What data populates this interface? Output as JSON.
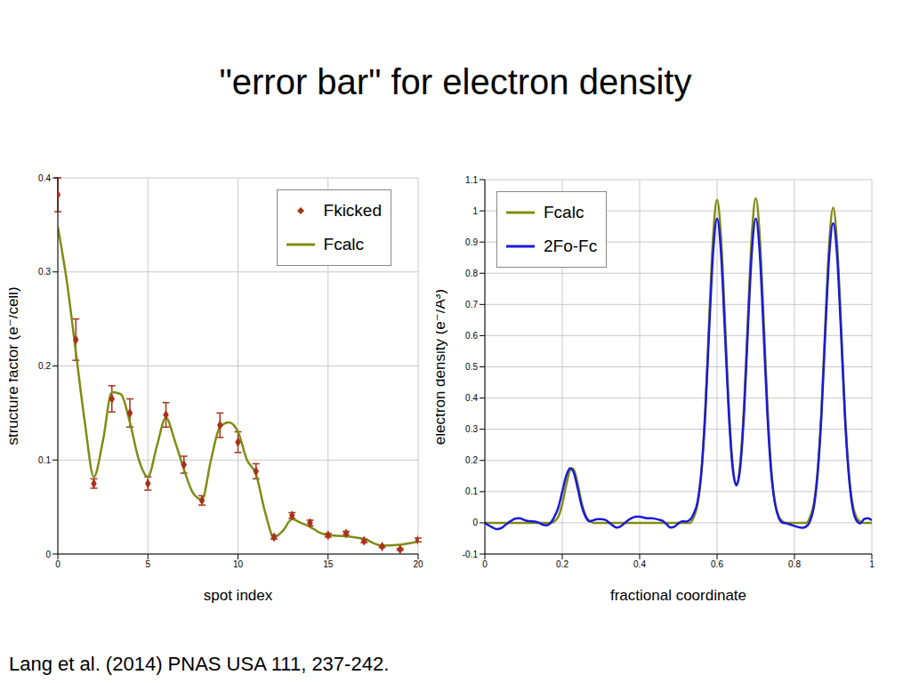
{
  "title": "\"error bar\" for electron density",
  "source": "Lang et al. (2014) PNAS USA 111, 237-242.",
  "chart_data": [
    {
      "type": "line",
      "x_label": "spot index",
      "y_label": "structure factor (e⁻/cell)",
      "xlim": [
        0,
        20
      ],
      "xticks": [
        0,
        5,
        10,
        15,
        20
      ],
      "ylim": [
        0,
        0.4
      ],
      "yticks": [
        0,
        0.1,
        0.2,
        0.3,
        0.4
      ],
      "grid": true,
      "legend": "upper right",
      "series": [
        {
          "name": "Fkicked",
          "type": "scatter",
          "marker": "diamond",
          "color": "#a8321a",
          "x": [
            0,
            1,
            2,
            3,
            4,
            5,
            6,
            7,
            8,
            9,
            10,
            11,
            12,
            13,
            14,
            15,
            16,
            17,
            18,
            19,
            20
          ],
          "values": [
            0.382,
            0.228,
            0.075,
            0.165,
            0.15,
            0.075,
            0.148,
            0.095,
            0.057,
            0.137,
            0.119,
            0.088,
            0.018,
            0.041,
            0.033,
            0.02,
            0.022,
            0.014,
            0.008,
            0.005,
            0.015
          ],
          "errors": [
            0.018,
            0.022,
            0.005,
            0.014,
            0.015,
            0.007,
            0.013,
            0.009,
            0.005,
            0.013,
            0.011,
            0.008,
            0.002,
            0.003,
            0.003,
            0.002,
            0.002,
            0.002,
            0.001,
            0.001,
            0.002
          ]
        },
        {
          "name": "Fcalc",
          "type": "line",
          "color": "#808c14",
          "x": [
            0,
            0.5,
            1,
            1.5,
            2,
            2.5,
            3,
            3.5,
            4,
            4.5,
            5,
            5.5,
            6,
            6.5,
            7,
            7.5,
            8,
            8.5,
            9,
            9.5,
            10,
            10.5,
            11,
            11.5,
            12,
            12.5,
            13,
            13.5,
            14,
            14.5,
            15,
            16,
            17,
            18,
            19,
            20
          ],
          "values": [
            0.348,
            0.29,
            0.215,
            0.14,
            0.082,
            0.12,
            0.172,
            0.17,
            0.14,
            0.1,
            0.082,
            0.115,
            0.145,
            0.12,
            0.09,
            0.065,
            0.058,
            0.1,
            0.135,
            0.14,
            0.13,
            0.1,
            0.085,
            0.045,
            0.018,
            0.025,
            0.037,
            0.033,
            0.029,
            0.023,
            0.02,
            0.019,
            0.016,
            0.009,
            0.01,
            0.013
          ]
        }
      ]
    },
    {
      "type": "line",
      "x_label": "fractional coordinate",
      "y_label": "electron density (e⁻/Å³)",
      "xlim": [
        0,
        1
      ],
      "xticks": [
        0,
        0.2,
        0.4,
        0.6,
        0.8,
        1
      ],
      "ylim": [
        -0.1,
        1.1
      ],
      "yticks": [
        -0.1,
        0,
        0.1,
        0.2,
        0.3,
        0.4,
        0.5,
        0.6,
        0.7,
        0.8,
        0.9,
        1,
        1.1
      ],
      "grid": true,
      "legend": "upper left",
      "series": [
        {
          "name": "Fcalc",
          "type": "line",
          "color": "#808c14",
          "x": [
            0,
            0.17,
            0.18,
            0.19,
            0.2,
            0.21,
            0.22,
            0.225,
            0.23,
            0.24,
            0.25,
            0.26,
            0.27,
            0.28,
            0.53,
            0.54,
            0.55,
            0.56,
            0.57,
            0.58,
            0.59,
            0.6,
            0.61,
            0.62,
            0.63,
            0.64,
            0.65,
            0.66,
            0.67,
            0.68,
            0.69,
            0.7,
            0.71,
            0.72,
            0.73,
            0.74,
            0.75,
            0.76,
            0.77,
            0.78,
            0.83,
            0.84,
            0.85,
            0.86,
            0.87,
            0.88,
            0.89,
            0.9,
            0.91,
            0.92,
            0.93,
            0.94,
            0.95,
            0.96,
            0.97,
            0.98,
            1
          ],
          "values": [
            0,
            0,
            0.005,
            0.02,
            0.06,
            0.12,
            0.168,
            0.175,
            0.17,
            0.125,
            0.065,
            0.025,
            0.007,
            0,
            0,
            0.019,
            0.062,
            0.172,
            0.377,
            0.662,
            0.921,
            1.035,
            0.921,
            0.663,
            0.381,
            0.191,
            0.124,
            0.192,
            0.383,
            0.666,
            0.926,
            1.04,
            0.926,
            0.666,
            0.379,
            0.173,
            0.062,
            0.019,
            0.004,
            0,
            0,
            0.018,
            0.061,
            0.168,
            0.368,
            0.646,
            0.899,
            1.01,
            0.899,
            0.646,
            0.368,
            0.168,
            0.061,
            0.018,
            0.004,
            0,
            0
          ]
        },
        {
          "name": "2Fo-Fc",
          "type": "line",
          "color": "#1a1ad8",
          "x": [
            0,
            0.01,
            0.02,
            0.03,
            0.04,
            0.05,
            0.06,
            0.07,
            0.08,
            0.09,
            0.1,
            0.11,
            0.12,
            0.13,
            0.14,
            0.15,
            0.16,
            0.17,
            0.18,
            0.19,
            0.2,
            0.21,
            0.22,
            0.23,
            0.24,
            0.25,
            0.26,
            0.27,
            0.28,
            0.29,
            0.3,
            0.31,
            0.32,
            0.33,
            0.34,
            0.35,
            0.36,
            0.37,
            0.38,
            0.39,
            0.4,
            0.41,
            0.42,
            0.43,
            0.44,
            0.45,
            0.46,
            0.47,
            0.48,
            0.49,
            0.5,
            0.51,
            0.52,
            0.53,
            0.54,
            0.55,
            0.56,
            0.57,
            0.58,
            0.59,
            0.6,
            0.61,
            0.62,
            0.63,
            0.64,
            0.65,
            0.66,
            0.67,
            0.68,
            0.69,
            0.7,
            0.71,
            0.72,
            0.73,
            0.74,
            0.75,
            0.76,
            0.77,
            0.78,
            0.79,
            0.8,
            0.81,
            0.82,
            0.83,
            0.84,
            0.85,
            0.86,
            0.87,
            0.88,
            0.89,
            0.9,
            0.91,
            0.92,
            0.93,
            0.94,
            0.95,
            0.96,
            0.97,
            0.98,
            0.99,
            1
          ],
          "values": [
            0,
            -0.008,
            -0.015,
            -0.02,
            -0.018,
            -0.01,
            0,
            0.008,
            0.014,
            0.015,
            0.01,
            0.006,
            0.005,
            0.004,
            0,
            -0.006,
            -0.008,
            0,
            0.02,
            0.05,
            0.1,
            0.15,
            0.175,
            0.16,
            0.11,
            0.055,
            0.02,
            0.005,
            0.008,
            0.012,
            0.012,
            0.01,
            0.002,
            -0.008,
            -0.015,
            -0.012,
            -0.002,
            0.008,
            0.016,
            0.02,
            0.02,
            0.017,
            0.015,
            0.015,
            0.013,
            0.01,
            0.006,
            -0.005,
            -0.015,
            -0.012,
            -0.002,
            0.005,
            0.004,
            0.01,
            0.03,
            0.07,
            0.17,
            0.36,
            0.63,
            0.87,
            0.975,
            0.87,
            0.62,
            0.36,
            0.18,
            0.12,
            0.18,
            0.36,
            0.63,
            0.87,
            0.975,
            0.87,
            0.62,
            0.35,
            0.16,
            0.06,
            0.015,
            0,
            -0.002,
            -0.006,
            -0.01,
            -0.014,
            -0.016,
            -0.012,
            0.005,
            0.05,
            0.16,
            0.35,
            0.62,
            0.86,
            0.96,
            0.86,
            0.62,
            0.35,
            0.16,
            0.05,
            0.008,
            -0.002,
            0.012,
            0.015,
            0.008
          ]
        }
      ]
    }
  ]
}
